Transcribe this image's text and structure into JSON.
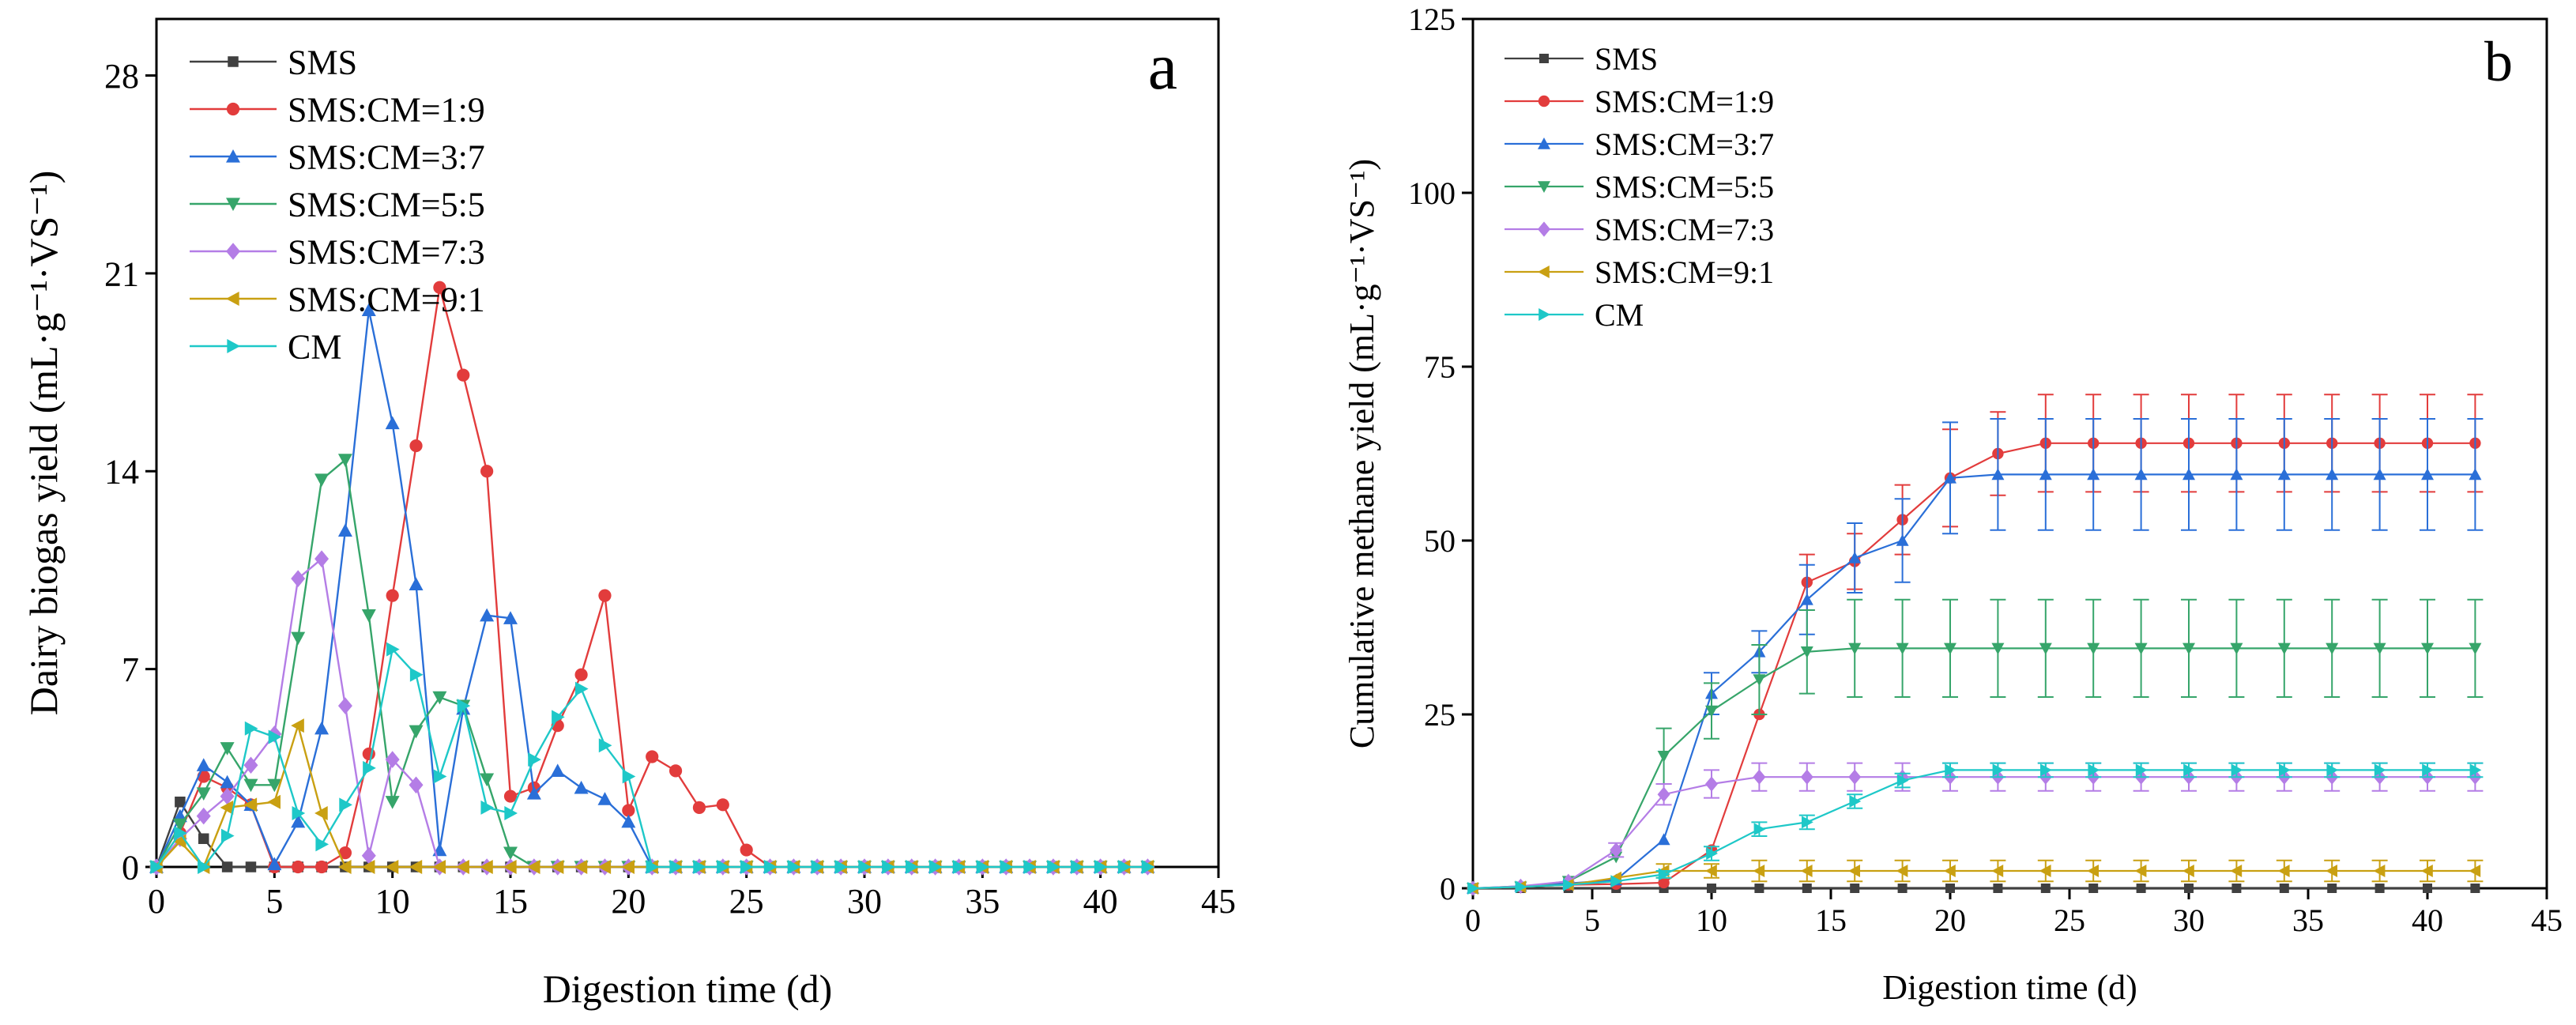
{
  "colors": {
    "SMS": "#404040",
    "SMS:CM=1:9": "#e23c3c",
    "SMS:CM=3:7": "#2a6fd8",
    "SMS:CM=5:5": "#36a56a",
    "SMS:CM=7:3": "#b47de6",
    "SMS:CM=9:1": "#c9a012",
    "CM": "#1ec8c8"
  },
  "chart_data": [
    {
      "panel_label": "a",
      "type": "line",
      "title": "",
      "xlabel": "Digestion time (d)",
      "ylabel": "Dairy biogas yield (mL·g⁻¹·VS⁻¹)",
      "xlim": [
        0,
        45
      ],
      "ylim": [
        0,
        30
      ],
      "xticks": [
        0,
        5,
        10,
        15,
        20,
        25,
        30,
        35,
        40,
        45
      ],
      "yticks": [
        0,
        7,
        14,
        21,
        28
      ],
      "legend_position": "top-left",
      "panel_label_position": "top-right",
      "x": [
        0,
        1,
        2,
        3,
        4,
        5,
        6,
        7,
        8,
        9,
        10,
        11,
        12,
        13,
        14,
        15,
        16,
        17,
        18,
        19,
        20,
        21,
        22,
        23,
        24,
        25,
        26,
        27,
        28,
        29,
        30,
        31,
        32,
        33,
        34,
        35,
        36,
        37,
        38,
        39,
        40,
        41,
        42
      ],
      "series": [
        {
          "name": "SMS",
          "marker": "square",
          "values": [
            0,
            2.3,
            1.0,
            0,
            0,
            0,
            0,
            0,
            0,
            0,
            0,
            0,
            0,
            0,
            0,
            0,
            0,
            0,
            0,
            0,
            0,
            0,
            0,
            0,
            0,
            0,
            0,
            0,
            0,
            0,
            0,
            0,
            0,
            0,
            0,
            0,
            0,
            0,
            0,
            0,
            0,
            0,
            0
          ]
        },
        {
          "name": "SMS:CM=1:9",
          "marker": "circle",
          "values": [
            0,
            1.2,
            3.2,
            2.8,
            2.2,
            0,
            0,
            0,
            0.5,
            4.0,
            9.6,
            14.9,
            20.5,
            17.4,
            14.0,
            2.5,
            2.8,
            5.0,
            6.8,
            9.6,
            2.0,
            3.9,
            3.4,
            2.1,
            2.2,
            0.6,
            0,
            0,
            0,
            0,
            0,
            0,
            0,
            0,
            0,
            0,
            0,
            0,
            0,
            0,
            0,
            0,
            0
          ]
        },
        {
          "name": "SMS:CM=3:7",
          "marker": "triangle-up",
          "values": [
            0,
            1.8,
            3.6,
            3.0,
            2.2,
            0.1,
            1.6,
            4.9,
            11.9,
            19.7,
            15.7,
            10.0,
            0.6,
            5.6,
            8.9,
            8.8,
            2.6,
            3.4,
            2.8,
            2.4,
            1.6,
            0,
            0,
            0,
            0,
            0,
            0,
            0,
            0,
            0,
            0,
            0,
            0,
            0,
            0,
            0,
            0,
            0,
            0,
            0,
            0,
            0,
            0
          ]
        },
        {
          "name": "SMS:CM=5:5",
          "marker": "triangle-down",
          "values": [
            0,
            1.5,
            2.6,
            4.2,
            2.9,
            2.9,
            8.1,
            13.7,
            14.4,
            8.9,
            2.3,
            4.8,
            6.0,
            5.7,
            3.1,
            0.5,
            0,
            0,
            0,
            0,
            0,
            0,
            0,
            0,
            0,
            0,
            0,
            0,
            0,
            0,
            0,
            0,
            0,
            0,
            0,
            0,
            0,
            0,
            0,
            0,
            0,
            0,
            0
          ]
        },
        {
          "name": "SMS:CM=7:3",
          "marker": "diamond",
          "values": [
            0,
            1.0,
            1.8,
            2.5,
            3.6,
            4.7,
            10.2,
            10.9,
            5.7,
            0.4,
            3.8,
            2.9,
            0,
            0,
            0,
            0,
            0,
            0,
            0,
            0,
            0,
            0,
            0,
            0,
            0,
            0,
            0,
            0,
            0,
            0,
            0,
            0,
            0,
            0,
            0,
            0,
            0,
            0,
            0,
            0,
            0,
            0,
            0
          ]
        },
        {
          "name": "SMS:CM=9:1",
          "marker": "triangle-left",
          "values": [
            0,
            0.9,
            0,
            2.1,
            2.2,
            2.3,
            5.0,
            1.9,
            0,
            0,
            0,
            0,
            0,
            0,
            0,
            0,
            0,
            0,
            0,
            0,
            0,
            0,
            0,
            0,
            0,
            0,
            0,
            0,
            0,
            0,
            0,
            0,
            0,
            0,
            0,
            0,
            0,
            0,
            0,
            0,
            0,
            0,
            0
          ]
        },
        {
          "name": "CM",
          "marker": "triangle-right",
          "values": [
            0,
            1.2,
            0,
            1.1,
            4.9,
            4.6,
            1.9,
            0.8,
            2.2,
            3.5,
            7.7,
            6.8,
            3.2,
            5.7,
            2.1,
            1.9,
            3.8,
            5.3,
            6.3,
            4.3,
            3.2,
            0,
            0,
            0,
            0,
            0,
            0,
            0,
            0,
            0,
            0,
            0,
            0,
            0,
            0,
            0,
            0,
            0,
            0,
            0,
            0,
            0,
            0
          ]
        }
      ]
    },
    {
      "panel_label": "b",
      "type": "line",
      "title": "",
      "xlabel": "Digestion time (d)",
      "ylabel": "Cumulative methane yield (mL·g⁻¹·VS⁻¹)",
      "xlim": [
        0,
        45
      ],
      "ylim": [
        0,
        125
      ],
      "xticks": [
        0,
        5,
        10,
        15,
        20,
        25,
        30,
        35,
        40,
        45
      ],
      "yticks": [
        0,
        25,
        50,
        75,
        100,
        125
      ],
      "legend_position": "top-left",
      "panel_label_position": "top-right",
      "x": [
        0,
        2,
        4,
        6,
        8,
        10,
        12,
        14,
        16,
        18,
        20,
        22,
        24,
        26,
        28,
        30,
        32,
        34,
        36,
        38,
        40,
        42
      ],
      "series": [
        {
          "name": "SMS",
          "marker": "square",
          "values": [
            0,
            0,
            0,
            0,
            0,
            0,
            0,
            0,
            0,
            0,
            0,
            0,
            0,
            0,
            0,
            0,
            0,
            0,
            0,
            0,
            0,
            0
          ],
          "errors": [
            0,
            0,
            0,
            0,
            0,
            0,
            0,
            0,
            0,
            0,
            0,
            0,
            0,
            0,
            0,
            0,
            0,
            0,
            0,
            0,
            0,
            0
          ]
        },
        {
          "name": "SMS:CM=1:9",
          "marker": "circle",
          "values": [
            0,
            0.2,
            0.5,
            0.6,
            0.8,
            5.5,
            25,
            44,
            47,
            53,
            59,
            62.5,
            64,
            64,
            64,
            64,
            64,
            64,
            64,
            64,
            64,
            64
          ],
          "errors": [
            0,
            0,
            0,
            0,
            0,
            0,
            0,
            4,
            4,
            5,
            7,
            6,
            7,
            7,
            7,
            7,
            7,
            7,
            7,
            7,
            7,
            7
          ]
        },
        {
          "name": "SMS:CM=3:7",
          "marker": "triangle-up",
          "values": [
            0,
            0.3,
            0.7,
            1.2,
            7,
            28,
            34,
            41.5,
            47.5,
            50,
            59,
            59.5,
            59.5,
            59.5,
            59.5,
            59.5,
            59.5,
            59.5,
            59.5,
            59.5,
            59.5,
            59.5
          ],
          "errors": [
            0,
            0,
            0,
            0,
            0,
            3,
            3,
            5,
            5,
            6,
            8,
            8,
            8,
            8,
            8,
            8,
            8,
            8,
            8,
            8,
            8,
            8
          ]
        },
        {
          "name": "SMS:CM=5:5",
          "marker": "triangle-down",
          "values": [
            0,
            0.2,
            1,
            4.5,
            19,
            25.5,
            30,
            34,
            34.5,
            34.5,
            34.5,
            34.5,
            34.5,
            34.5,
            34.5,
            34.5,
            34.5,
            34.5,
            34.5,
            34.5,
            34.5,
            34.5
          ],
          "errors": [
            0,
            0,
            0,
            0,
            4,
            4,
            5,
            6,
            7,
            7,
            7,
            7,
            7,
            7,
            7,
            7,
            7,
            7,
            7,
            7,
            7,
            7
          ]
        },
        {
          "name": "SMS:CM=7:3",
          "marker": "diamond",
          "values": [
            0,
            0.3,
            1,
            5.5,
            13.5,
            15,
            16,
            16,
            16,
            16,
            16,
            16,
            16,
            16,
            16,
            16,
            16,
            16,
            16,
            16,
            16,
            16
          ],
          "errors": [
            0,
            0,
            0,
            1,
            1.5,
            2,
            2,
            2,
            2,
            2,
            2,
            2,
            2,
            2,
            2,
            2,
            2,
            2,
            2,
            2,
            2,
            2
          ]
        },
        {
          "name": "SMS:CM=9:1",
          "marker": "triangle-left",
          "values": [
            0,
            0.2,
            0.5,
            1.5,
            2.5,
            2.5,
            2.5,
            2.5,
            2.5,
            2.5,
            2.5,
            2.5,
            2.5,
            2.5,
            2.5,
            2.5,
            2.5,
            2.5,
            2.5,
            2.5,
            2.5,
            2.5
          ],
          "errors": [
            0,
            0,
            0,
            0,
            1,
            1,
            1.5,
            1.5,
            1.5,
            1.5,
            1.5,
            1.5,
            1.5,
            1.5,
            1.5,
            1.5,
            1.5,
            1.5,
            1.5,
            1.5,
            1.5,
            1.5
          ]
        },
        {
          "name": "CM",
          "marker": "triangle-right",
          "values": [
            0,
            0.2,
            0.5,
            1,
            2,
            5,
            8.5,
            9.5,
            12.5,
            15.5,
            17,
            17,
            17,
            17,
            17,
            17,
            17,
            17,
            17,
            17,
            17,
            17
          ],
          "errors": [
            0,
            0,
            0,
            0,
            0.5,
            1,
            1,
            1,
            1,
            1,
            1,
            1,
            1,
            1,
            1,
            1,
            1,
            1,
            1,
            1,
            1,
            1
          ]
        }
      ]
    }
  ]
}
